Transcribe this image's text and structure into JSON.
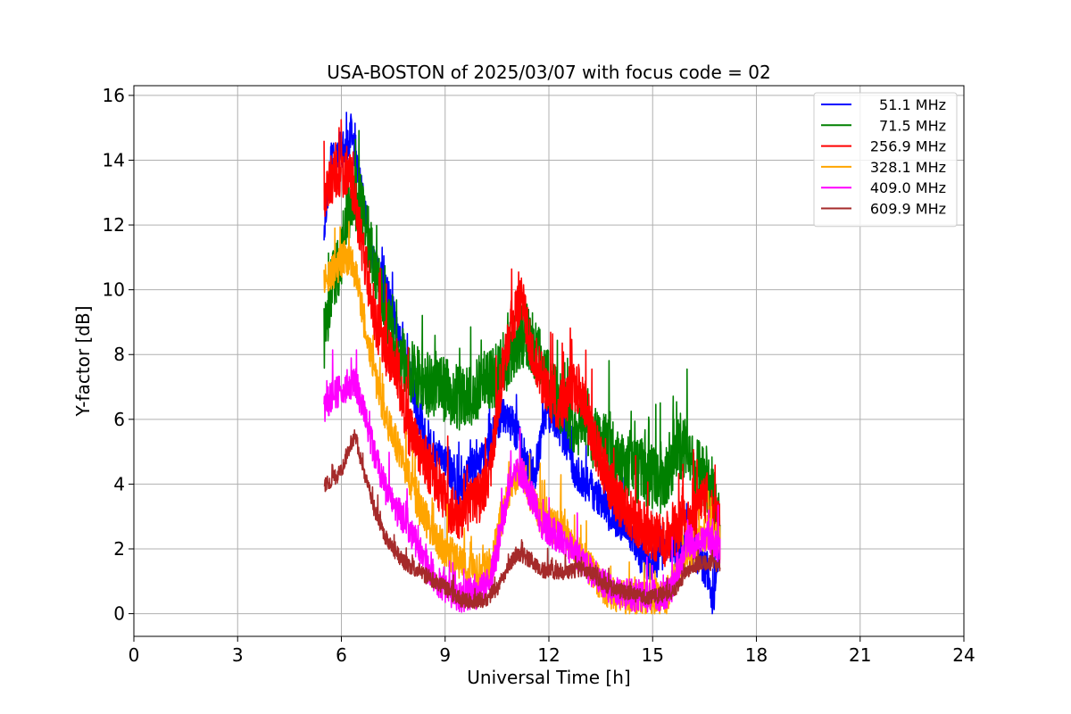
{
  "chart_data": {
    "type": "line",
    "title": "USA-BOSTON of 2025/03/07 with focus code = 02",
    "xlabel": "Universal Time [h]",
    "ylabel": "Y-factor [dB]",
    "xlim": [
      0,
      24
    ],
    "ylim": [
      -0.7,
      16.3
    ],
    "xticks": [
      0,
      3,
      6,
      9,
      12,
      15,
      18,
      21,
      24
    ],
    "xtick_labels": [
      "0",
      "3",
      "6",
      "9",
      "12",
      "15",
      "18",
      "21",
      "24"
    ],
    "yticks": [
      0,
      2,
      4,
      6,
      8,
      10,
      12,
      14,
      16
    ],
    "ytick_labels": [
      "0",
      "2",
      "4",
      "6",
      "8",
      "10",
      "12",
      "14",
      "16"
    ],
    "grid": true,
    "legend_position": "top-right",
    "series": [
      {
        "name": "51.1 MHz",
        "color": "#0000ff",
        "noise": 0.6,
        "points": [
          [
            5.5,
            12.0
          ],
          [
            5.7,
            14.0
          ],
          [
            6.0,
            14.3
          ],
          [
            6.3,
            14.8
          ],
          [
            6.6,
            12.8
          ],
          [
            7.0,
            10.5
          ],
          [
            7.3,
            10.0
          ],
          [
            7.6,
            8.8
          ],
          [
            7.9,
            7.6
          ],
          [
            8.2,
            6.3
          ],
          [
            8.5,
            5.2
          ],
          [
            8.8,
            5.0
          ],
          [
            9.1,
            4.6
          ],
          [
            9.4,
            3.6
          ],
          [
            9.7,
            4.5
          ],
          [
            10.0,
            4.6
          ],
          [
            10.2,
            5.0
          ],
          [
            10.4,
            5.5
          ],
          [
            10.7,
            6.2
          ],
          [
            11.0,
            5.8
          ],
          [
            11.3,
            4.8
          ],
          [
            11.6,
            4.3
          ],
          [
            11.9,
            6.3
          ],
          [
            12.2,
            6.0
          ],
          [
            12.5,
            5.3
          ],
          [
            12.8,
            4.3
          ],
          [
            13.1,
            4.0
          ],
          [
            13.4,
            3.6
          ],
          [
            13.7,
            3.2
          ],
          [
            14.0,
            2.9
          ],
          [
            14.3,
            2.7
          ],
          [
            14.6,
            1.9
          ],
          [
            14.9,
            1.5
          ],
          [
            15.2,
            1.7
          ],
          [
            15.5,
            2.1
          ],
          [
            15.8,
            1.9
          ],
          [
            16.1,
            2.3
          ],
          [
            16.4,
            1.6
          ],
          [
            16.6,
            1.3
          ],
          [
            16.75,
            0.2
          ],
          [
            16.9,
            1.5
          ]
        ]
      },
      {
        "name": "71.5 MHz",
        "color": "#008000",
        "noise": 1.0,
        "points": [
          [
            5.5,
            8.5
          ],
          [
            5.7,
            10.0
          ],
          [
            6.0,
            11.0
          ],
          [
            6.3,
            13.0
          ],
          [
            6.6,
            12.5
          ],
          [
            6.9,
            11.0
          ],
          [
            7.2,
            9.5
          ],
          [
            7.5,
            8.2
          ],
          [
            7.8,
            7.8
          ],
          [
            8.1,
            7.4
          ],
          [
            8.4,
            7.1
          ],
          [
            8.7,
            7.0
          ],
          [
            9.0,
            6.9
          ],
          [
            9.3,
            6.7
          ],
          [
            9.6,
            6.6
          ],
          [
            9.9,
            6.9
          ],
          [
            10.2,
            7.3
          ],
          [
            10.5,
            7.4
          ],
          [
            10.8,
            7.9
          ],
          [
            11.1,
            8.5
          ],
          [
            11.4,
            8.6
          ],
          [
            11.7,
            7.9
          ],
          [
            12.0,
            7.1
          ],
          [
            12.3,
            6.6
          ],
          [
            12.6,
            6.1
          ],
          [
            12.9,
            5.8
          ],
          [
            13.2,
            5.5
          ],
          [
            13.5,
            5.3
          ],
          [
            13.8,
            5.0
          ],
          [
            14.1,
            4.6
          ],
          [
            14.4,
            4.4
          ],
          [
            14.7,
            4.4
          ],
          [
            15.0,
            4.2
          ],
          [
            15.3,
            4.0
          ],
          [
            15.6,
            4.8
          ],
          [
            15.9,
            5.1
          ],
          [
            16.2,
            4.6
          ],
          [
            16.5,
            4.2
          ],
          [
            16.75,
            3.8
          ],
          [
            16.95,
            2.5
          ]
        ]
      },
      {
        "name": "256.9 MHz",
        "color": "#ff0000",
        "noise": 0.8,
        "points": [
          [
            5.5,
            13.0
          ],
          [
            5.8,
            13.5
          ],
          [
            6.1,
            13.6
          ],
          [
            6.3,
            13.3
          ],
          [
            6.6,
            11.3
          ],
          [
            7.0,
            9.0
          ],
          [
            7.3,
            8.1
          ],
          [
            7.6,
            7.6
          ],
          [
            7.9,
            5.8
          ],
          [
            8.2,
            5.2
          ],
          [
            8.5,
            4.6
          ],
          [
            8.8,
            3.9
          ],
          [
            9.1,
            3.3
          ],
          [
            9.4,
            3.1
          ],
          [
            9.7,
            3.3
          ],
          [
            10.0,
            3.6
          ],
          [
            10.3,
            4.4
          ],
          [
            10.6,
            7.0
          ],
          [
            10.9,
            9.0
          ],
          [
            11.2,
            9.6
          ],
          [
            11.5,
            8.2
          ],
          [
            11.8,
            7.3
          ],
          [
            12.1,
            6.6
          ],
          [
            12.4,
            6.4
          ],
          [
            12.7,
            7.1
          ],
          [
            13.0,
            6.6
          ],
          [
            13.3,
            5.4
          ],
          [
            13.6,
            4.4
          ],
          [
            13.9,
            3.6
          ],
          [
            14.2,
            3.3
          ],
          [
            14.5,
            2.9
          ],
          [
            14.8,
            2.6
          ],
          [
            15.1,
            2.4
          ],
          [
            15.4,
            2.2
          ],
          [
            15.7,
            2.6
          ],
          [
            16.0,
            2.8
          ],
          [
            16.3,
            3.2
          ],
          [
            16.6,
            3.6
          ],
          [
            16.95,
            2.8
          ]
        ]
      },
      {
        "name": "328.1 MHz",
        "color": "#ffa500",
        "noise": 0.55,
        "points": [
          [
            5.5,
            10.4
          ],
          [
            5.8,
            10.6
          ],
          [
            6.1,
            11.0
          ],
          [
            6.4,
            10.6
          ],
          [
            6.7,
            8.8
          ],
          [
            7.0,
            7.2
          ],
          [
            7.3,
            6.0
          ],
          [
            7.6,
            5.2
          ],
          [
            7.9,
            4.4
          ],
          [
            8.2,
            3.4
          ],
          [
            8.5,
            2.8
          ],
          [
            8.8,
            2.2
          ],
          [
            9.1,
            1.9
          ],
          [
            9.4,
            1.6
          ],
          [
            9.7,
            1.4
          ],
          [
            10.0,
            1.2
          ],
          [
            10.3,
            1.5
          ],
          [
            10.6,
            2.8
          ],
          [
            10.9,
            4.0
          ],
          [
            11.2,
            4.4
          ],
          [
            11.5,
            3.6
          ],
          [
            11.8,
            2.9
          ],
          [
            12.1,
            2.7
          ],
          [
            12.4,
            2.6
          ],
          [
            12.7,
            2.1
          ],
          [
            13.0,
            1.7
          ],
          [
            13.3,
            1.2
          ],
          [
            13.6,
            0.8
          ],
          [
            13.9,
            0.6
          ],
          [
            14.2,
            0.5
          ],
          [
            14.5,
            0.45
          ],
          [
            14.8,
            0.45
          ],
          [
            15.1,
            0.4
          ],
          [
            15.4,
            0.5
          ],
          [
            15.7,
            1.3
          ],
          [
            16.0,
            1.9
          ],
          [
            16.3,
            2.1
          ],
          [
            16.6,
            2.6
          ],
          [
            16.95,
            2.2
          ]
        ]
      },
      {
        "name": "409.0 MHz",
        "color": "#ff00ff",
        "noise": 0.5,
        "points": [
          [
            5.5,
            6.4
          ],
          [
            5.8,
            6.8
          ],
          [
            6.1,
            7.0
          ],
          [
            6.4,
            7.2
          ],
          [
            6.7,
            6.0
          ],
          [
            7.0,
            4.8
          ],
          [
            7.3,
            3.8
          ],
          [
            7.6,
            3.2
          ],
          [
            7.9,
            2.8
          ],
          [
            8.2,
            2.1
          ],
          [
            8.5,
            1.4
          ],
          [
            8.8,
            1.0
          ],
          [
            9.1,
            0.7
          ],
          [
            9.4,
            0.5
          ],
          [
            9.7,
            0.6
          ],
          [
            10.0,
            0.65
          ],
          [
            10.3,
            1.0
          ],
          [
            10.6,
            2.4
          ],
          [
            10.9,
            4.2
          ],
          [
            11.2,
            4.4
          ],
          [
            11.5,
            3.6
          ],
          [
            11.8,
            2.8
          ],
          [
            12.1,
            2.5
          ],
          [
            12.4,
            2.3
          ],
          [
            12.7,
            1.9
          ],
          [
            13.0,
            1.6
          ],
          [
            13.3,
            1.2
          ],
          [
            13.6,
            0.9
          ],
          [
            13.9,
            0.75
          ],
          [
            14.2,
            0.6
          ],
          [
            14.5,
            0.55
          ],
          [
            14.8,
            0.55
          ],
          [
            15.1,
            0.55
          ],
          [
            15.4,
            0.6
          ],
          [
            15.7,
            1.1
          ],
          [
            16.0,
            2.2
          ],
          [
            16.3,
            2.1
          ],
          [
            16.6,
            2.4
          ],
          [
            16.95,
            1.9
          ]
        ]
      },
      {
        "name": "609.9 MHz",
        "color": "#a52a2a",
        "noise": 0.25,
        "points": [
          [
            5.5,
            4.0
          ],
          [
            5.8,
            4.2
          ],
          [
            6.0,
            4.4
          ],
          [
            6.2,
            5.0
          ],
          [
            6.4,
            5.5
          ],
          [
            6.6,
            4.6
          ],
          [
            6.9,
            3.4
          ],
          [
            7.2,
            2.5
          ],
          [
            7.5,
            2.0
          ],
          [
            7.8,
            1.6
          ],
          [
            8.1,
            1.4
          ],
          [
            8.4,
            1.2
          ],
          [
            8.7,
            1.0
          ],
          [
            9.0,
            0.8
          ],
          [
            9.3,
            0.5
          ],
          [
            9.6,
            0.4
          ],
          [
            9.9,
            0.4
          ],
          [
            10.2,
            0.45
          ],
          [
            10.5,
            0.8
          ],
          [
            10.8,
            1.4
          ],
          [
            11.1,
            1.9
          ],
          [
            11.4,
            1.7
          ],
          [
            11.7,
            1.4
          ],
          [
            12.0,
            1.3
          ],
          [
            12.3,
            1.3
          ],
          [
            12.6,
            1.3
          ],
          [
            12.9,
            1.4
          ],
          [
            13.2,
            1.3
          ],
          [
            13.5,
            1.0
          ],
          [
            13.8,
            0.8
          ],
          [
            14.1,
            0.7
          ],
          [
            14.4,
            0.6
          ],
          [
            14.7,
            0.55
          ],
          [
            15.0,
            0.5
          ],
          [
            15.3,
            0.6
          ],
          [
            15.6,
            0.7
          ],
          [
            15.9,
            1.2
          ],
          [
            16.2,
            1.5
          ],
          [
            16.5,
            1.6
          ],
          [
            16.95,
            1.5
          ]
        ]
      }
    ]
  }
}
